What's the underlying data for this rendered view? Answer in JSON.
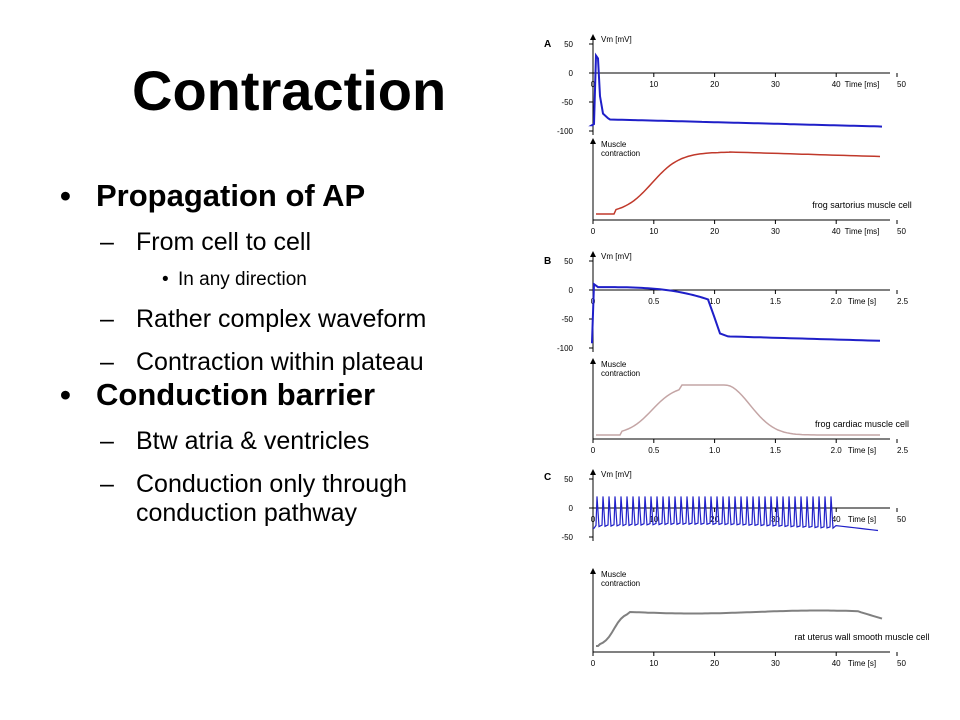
{
  "slide": {
    "title": "Contraction",
    "bullets": [
      {
        "text": "Propagation of AP",
        "children": [
          {
            "text": "From cell to cell",
            "children": [
              {
                "text": "In any direction"
              }
            ]
          },
          {
            "text": "Rather complex waveform"
          },
          {
            "text": "Contraction within plateau"
          }
        ]
      },
      {
        "text": "Conduction barrier",
        "children": [
          {
            "text": "Btw atria & ventricles"
          },
          {
            "text": "Conduction only through conduction pathway"
          }
        ]
      }
    ]
  },
  "figure": {
    "colors": {
      "potential": "#1f1fc8",
      "contraction_a": "#c0392b",
      "contraction_b": "#c4a5a5",
      "contraction_c": "#808080"
    },
    "panels": [
      {
        "letter": "A",
        "vm_label": "Vm [mV]",
        "vm_ticks": [
          "50",
          "0",
          "-50",
          "-100"
        ],
        "x_ticks": [
          "0",
          "10",
          "20",
          "30",
          "40",
          "50"
        ],
        "x_unit": "Time [ms]",
        "contraction_label": [
          "Muscle",
          "contraction"
        ],
        "caption": "frog sartorius muscle cell"
      },
      {
        "letter": "B",
        "vm_label": "Vm [mV]",
        "vm_ticks": [
          "50",
          "0",
          "-50",
          "-100"
        ],
        "x_ticks": [
          "0",
          "0.5",
          "1.0",
          "1.5",
          "2.0",
          "2.5"
        ],
        "x_unit": "Time [s]",
        "contraction_label": [
          "Muscle",
          "contraction"
        ],
        "caption": "frog cardiac muscle cell"
      },
      {
        "letter": "C",
        "vm_label": "Vm [mV]",
        "vm_ticks": [
          "50",
          "0",
          "-50"
        ],
        "x_ticks": [
          "0",
          "10",
          "20",
          "30",
          "40",
          "50"
        ],
        "x_unit": "Time [s]",
        "contraction_label": [
          "Muscle",
          "contraction"
        ],
        "caption": "rat uterus wall smooth muscle cell"
      }
    ]
  }
}
